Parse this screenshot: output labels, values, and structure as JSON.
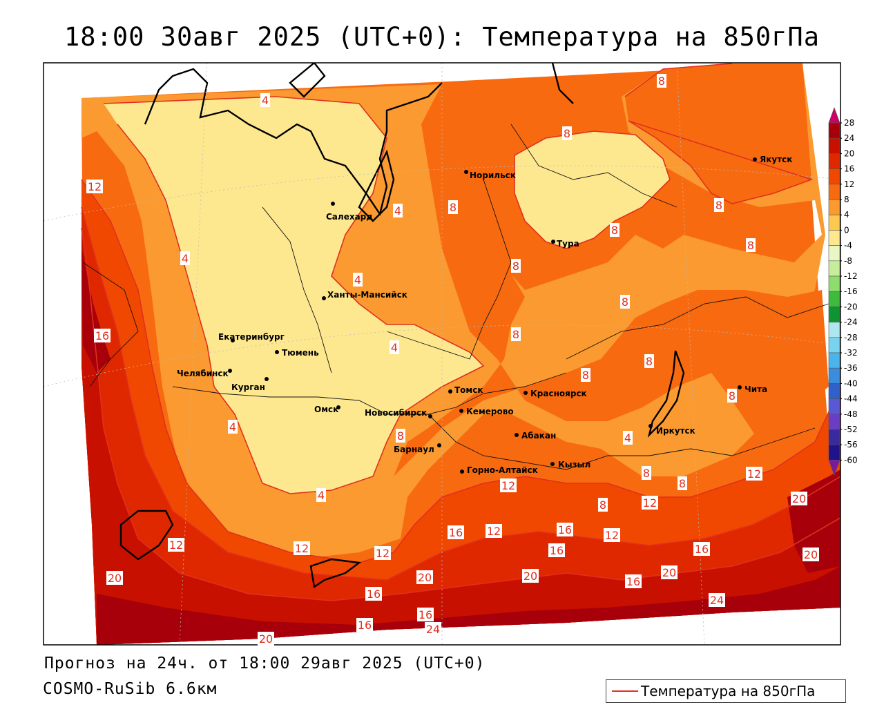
{
  "title": "18:00 30авг 2025 (UTC+0): Температура на 850гПа",
  "forecast_text": "Прогноз на 24ч. от 18:00 29авг 2025 (UTC+0)",
  "model_text": "COSMO-RuSib 6.6км",
  "legend_label": "Температура на 850гПа",
  "colorbar": {
    "ticks": [
      "28",
      "24",
      "20",
      "16",
      "12",
      "8",
      "4",
      "0",
      "-4",
      "-8",
      "-12",
      "-16",
      "-20",
      "-24",
      "-28",
      "-32",
      "-36",
      "-40",
      "-44",
      "-48",
      "-52",
      "-56",
      "-60"
    ],
    "colors": [
      "#cc0066",
      "#a8000a",
      "#c81000",
      "#e02800",
      "#f04800",
      "#f86a10",
      "#fa9a30",
      "#fcc850",
      "#fde890",
      "#e9f7c4",
      "#c6ee9a",
      "#8fdc6e",
      "#3cbb3c",
      "#0e9430",
      "#aee8ee",
      "#78d4ee",
      "#4cb4ec",
      "#3a8cdc",
      "#3060cc",
      "#5a58d4",
      "#6a3ec4",
      "#3a2aa0",
      "#20128a",
      "#7a1a9e"
    ]
  },
  "cities": [
    {
      "name": "Норильск"
    },
    {
      "name": "Якутск"
    },
    {
      "name": "Салехард"
    },
    {
      "name": "Тура"
    },
    {
      "name": "Ханты-Мансийск"
    },
    {
      "name": "Екатеринбург"
    },
    {
      "name": "Тюмень"
    },
    {
      "name": "Челябинск"
    },
    {
      "name": "Курган"
    },
    {
      "name": "Омск"
    },
    {
      "name": "Новосибирск"
    },
    {
      "name": "Томск"
    },
    {
      "name": "Кемерово"
    },
    {
      "name": "Красноярск"
    },
    {
      "name": "Абакан"
    },
    {
      "name": "Иркутск"
    },
    {
      "name": "Чита"
    },
    {
      "name": "Барнаул"
    },
    {
      "name": "Горно-Алтайск"
    },
    {
      "name": "Кызыл"
    }
  ],
  "isotherm_labels": [
    "4",
    "4",
    "4",
    "4",
    "4",
    "4",
    "4",
    "4",
    "8",
    "8",
    "8",
    "8",
    "8",
    "8",
    "8",
    "8",
    "8",
    "8",
    "8",
    "8",
    "8",
    "8",
    "8",
    "8",
    "12",
    "12",
    "12",
    "12",
    "12",
    "12",
    "12",
    "12",
    "12",
    "16",
    "16",
    "16",
    "16",
    "16",
    "16",
    "16",
    "16",
    "16",
    "20",
    "20",
    "20",
    "20",
    "20",
    "20",
    "20",
    "24",
    "24"
  ]
}
